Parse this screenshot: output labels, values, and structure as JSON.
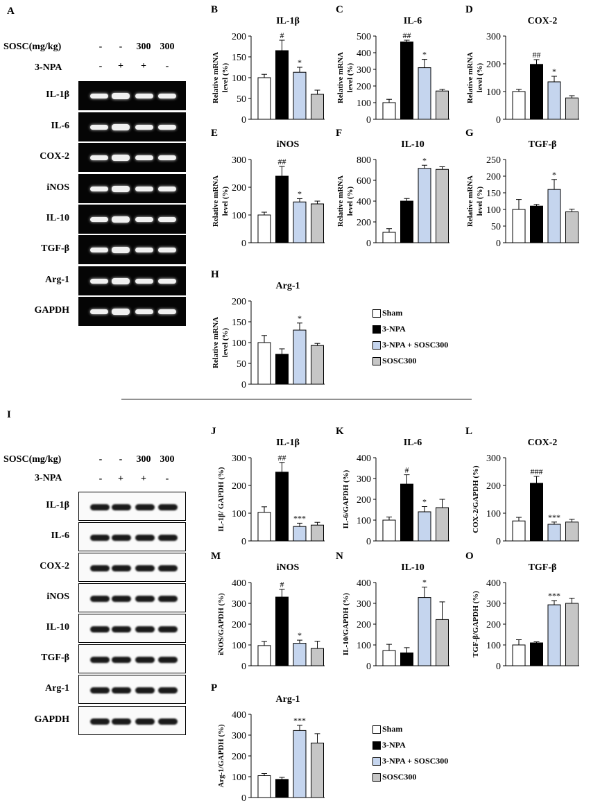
{
  "panel_letters": {
    "A": "A",
    "B": "B",
    "C": "C",
    "D": "D",
    "E": "E",
    "F": "F",
    "G": "G",
    "H": "H",
    "I": "I",
    "J": "J",
    "K": "K",
    "L": "L",
    "M": "M",
    "N": "N",
    "O": "O",
    "P": "P"
  },
  "treatment_header": {
    "sosc_label": "SOSC(mg/kg)",
    "npa_label": "3-NPA",
    "sosc_values": [
      "-",
      "-",
      "300",
      "300"
    ],
    "npa_values": [
      "-",
      "+",
      "+",
      "-"
    ]
  },
  "gel_rows": [
    "IL-1β",
    "IL-6",
    "COX-2",
    "iNOS",
    "IL-10",
    "TGF-β",
    "Arg-1",
    "GAPDH"
  ],
  "western_rows": [
    "IL-1β",
    "IL-6",
    "COX-2",
    "iNOS",
    "IL-10",
    "TGF-β",
    "Arg-1",
    "GAPDH"
  ],
  "colors": {
    "sham": "#ffffff",
    "npa": "#000000",
    "npa_sosc": "#c5d5ee",
    "sosc": "#c6c6c6"
  },
  "legend": [
    "Sham",
    "3-NPA",
    "3-NPA + SOSC300",
    "SOSC300"
  ],
  "chart_data": [
    {
      "panel": "B",
      "type": "bar",
      "title": "IL-1β",
      "ylabel": "Relative mRNA level (%)",
      "ylim": [
        0,
        200
      ],
      "yticks": [
        0,
        50,
        100,
        150,
        200
      ],
      "categories": [
        "Sham",
        "3-NPA",
        "3-NPA + SOSC300",
        "SOSC300"
      ],
      "values": [
        100,
        165,
        113,
        60
      ],
      "errors": [
        8,
        25,
        12,
        10
      ],
      "annotations": [
        "",
        "#",
        "*",
        ""
      ]
    },
    {
      "panel": "C",
      "type": "bar",
      "title": "IL-6",
      "ylabel": "Relative mRNA level (%)",
      "ylim": [
        0,
        500
      ],
      "yticks": [
        0,
        100,
        200,
        300,
        400,
        500
      ],
      "categories": [
        "Sham",
        "3-NPA",
        "3-NPA + SOSC300",
        "SOSC300"
      ],
      "values": [
        100,
        465,
        310,
        170
      ],
      "errors": [
        20,
        10,
        50,
        10
      ],
      "annotations": [
        "",
        "##",
        "*",
        ""
      ]
    },
    {
      "panel": "D",
      "type": "bar",
      "title": "COX-2",
      "ylabel": "Relative mRNA level (%)",
      "ylim": [
        0,
        300
      ],
      "yticks": [
        0,
        100,
        200,
        300
      ],
      "categories": [
        "Sham",
        "3-NPA",
        "3-NPA + SOSC300",
        "SOSC300"
      ],
      "values": [
        100,
        198,
        135,
        77
      ],
      "errors": [
        8,
        17,
        20,
        8
      ],
      "annotations": [
        "",
        "##",
        "*",
        ""
      ]
    },
    {
      "panel": "E",
      "type": "bar",
      "title": "iNOS",
      "ylabel": "Relative mRNA level (%)",
      "ylim": [
        0,
        300
      ],
      "yticks": [
        0,
        100,
        200,
        300
      ],
      "categories": [
        "Sham",
        "3-NPA",
        "3-NPA + SOSC300",
        "SOSC300"
      ],
      "values": [
        100,
        240,
        147,
        140
      ],
      "errors": [
        10,
        35,
        12,
        10
      ],
      "annotations": [
        "",
        "##",
        "*",
        ""
      ]
    },
    {
      "panel": "F",
      "type": "bar",
      "title": "IL-10",
      "ylabel": "Relative mRNA level (%)",
      "ylim": [
        0,
        800
      ],
      "yticks": [
        0,
        200,
        400,
        600,
        800
      ],
      "categories": [
        "Sham",
        "3-NPA",
        "3-NPA + SOSC300",
        "SOSC300"
      ],
      "values": [
        100,
        400,
        715,
        705
      ],
      "errors": [
        35,
        25,
        30,
        25
      ],
      "annotations": [
        "",
        "",
        "*",
        ""
      ]
    },
    {
      "panel": "G",
      "type": "bar",
      "title": "TGF-β",
      "ylabel": "Relative mRNA level (%)",
      "ylim": [
        0,
        250
      ],
      "yticks": [
        0,
        50,
        100,
        150,
        200,
        250
      ],
      "categories": [
        "Sham",
        "3-NPA",
        "3-NPA + SOSC300",
        "SOSC300"
      ],
      "values": [
        100,
        110,
        160,
        93
      ],
      "errors": [
        30,
        5,
        30,
        8
      ],
      "annotations": [
        "",
        "",
        "*",
        ""
      ]
    },
    {
      "panel": "H",
      "type": "bar",
      "title": "Arg-1",
      "ylabel": "Relative mRNA level (%)",
      "ylim": [
        0,
        200
      ],
      "yticks": [
        0,
        50,
        100,
        150,
        200
      ],
      "categories": [
        "Sham",
        "3-NPA",
        "3-NPA + SOSC300",
        "SOSC300"
      ],
      "values": [
        100,
        72,
        130,
        93
      ],
      "errors": [
        17,
        13,
        17,
        5
      ],
      "annotations": [
        "",
        "",
        "*",
        ""
      ]
    },
    {
      "panel": "J",
      "type": "bar",
      "title": "IL-1β",
      "ylabel": "IL-1β/ GAPDH (%)",
      "ylim": [
        0,
        300
      ],
      "yticks": [
        0,
        100,
        200,
        300
      ],
      "categories": [
        "Sham",
        "3-NPA",
        "3-NPA + SOSC300",
        "SOSC300"
      ],
      "values": [
        103,
        248,
        52,
        57
      ],
      "errors": [
        20,
        35,
        12,
        10
      ],
      "annotations": [
        "",
        "##",
        "***",
        ""
      ]
    },
    {
      "panel": "K",
      "type": "bar",
      "title": "IL-6",
      "ylabel": "IL-6/GAPDH (%)",
      "ylim": [
        0,
        400
      ],
      "yticks": [
        0,
        100,
        200,
        300,
        400
      ],
      "categories": [
        "Sham",
        "3-NPA",
        "3-NPA + SOSC300",
        "SOSC300"
      ],
      "values": [
        100,
        273,
        140,
        160
      ],
      "errors": [
        15,
        45,
        25,
        40
      ],
      "annotations": [
        "",
        "#",
        "*",
        ""
      ]
    },
    {
      "panel": "L",
      "type": "bar",
      "title": "COX-2",
      "ylabel": "COX-2/GAPDH (%)",
      "ylim": [
        0,
        300
      ],
      "yticks": [
        0,
        100,
        200,
        300
      ],
      "categories": [
        "Sham",
        "3-NPA",
        "3-NPA + SOSC300",
        "SOSC300"
      ],
      "values": [
        72,
        208,
        60,
        68
      ],
      "errors": [
        13,
        25,
        8,
        10
      ],
      "annotations": [
        "",
        "###",
        "***",
        ""
      ]
    },
    {
      "panel": "M",
      "type": "bar",
      "title": "iNOS",
      "ylabel": "iNOS/GAPDH (%)",
      "ylim": [
        0,
        400
      ],
      "yticks": [
        0,
        100,
        200,
        300,
        400
      ],
      "categories": [
        "Sham",
        "3-NPA",
        "3-NPA + SOSC300",
        "SOSC300"
      ],
      "values": [
        97,
        330,
        108,
        83
      ],
      "errors": [
        20,
        38,
        15,
        35
      ],
      "annotations": [
        "",
        "#",
        "*",
        ""
      ]
    },
    {
      "panel": "N",
      "type": "bar",
      "title": "IL-10",
      "ylabel": "IL-10/GAPDH (%)",
      "ylim": [
        0,
        400
      ],
      "yticks": [
        0,
        100,
        200,
        300,
        400
      ],
      "categories": [
        "Sham",
        "3-NPA",
        "3-NPA + SOSC300",
        "SOSC300"
      ],
      "values": [
        73,
        62,
        328,
        222
      ],
      "errors": [
        30,
        25,
        50,
        85
      ],
      "annotations": [
        "",
        "",
        "*",
        ""
      ]
    },
    {
      "panel": "O",
      "type": "bar",
      "title": "TGF-β",
      "ylabel": "TGF-β/GAPDH (%)",
      "ylim": [
        0,
        400
      ],
      "yticks": [
        0,
        100,
        200,
        300,
        400
      ],
      "categories": [
        "Sham",
        "3-NPA",
        "3-NPA + SOSC300",
        "SOSC300"
      ],
      "values": [
        100,
        110,
        293,
        300
      ],
      "errors": [
        25,
        5,
        20,
        25
      ],
      "annotations": [
        "",
        "",
        "***",
        ""
      ]
    },
    {
      "panel": "P",
      "type": "bar",
      "title": "Arg-1",
      "ylabel": "Arg-1/GAPDH (%)",
      "ylim": [
        0,
        400
      ],
      "yticks": [
        0,
        100,
        200,
        300,
        400
      ],
      "categories": [
        "Sham",
        "3-NPA",
        "3-NPA + SOSC300",
        "SOSC300"
      ],
      "values": [
        105,
        87,
        322,
        262
      ],
      "errors": [
        10,
        10,
        25,
        45
      ],
      "annotations": [
        "",
        "",
        "***",
        ""
      ]
    }
  ]
}
